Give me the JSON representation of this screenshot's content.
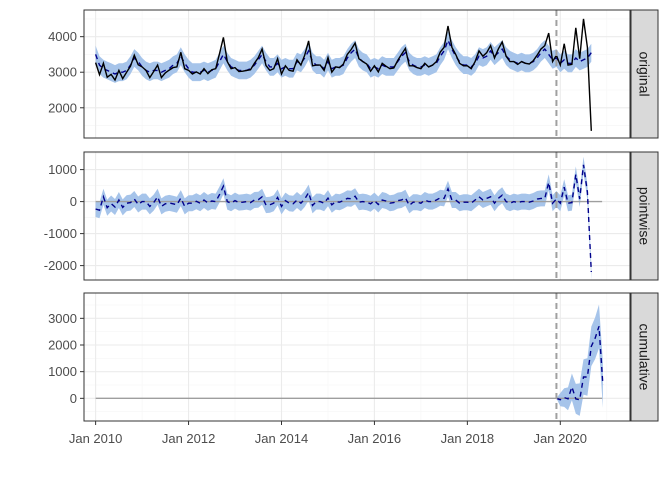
{
  "chart_data": {
    "type": "line",
    "layout": "three stacked facets sharing the x axis, facet strips on the right",
    "colors": {
      "ribbon": "#a6c4ea",
      "observed_line": "#000000",
      "predicted_line": "#00008b",
      "intervention_line": "#a0a0a0",
      "zero_line": "#9e9e9e",
      "strip_fill": "#d9d9d9",
      "panel_border": "#333333",
      "grid_major": "#ebebeb",
      "grid_minor": "#f5f5f5"
    },
    "x_axis": {
      "type": "date",
      "range": [
        "2009-10-01",
        "2021-07-01"
      ],
      "tick_labels": [
        "Jan 2010",
        "Jan 2012",
        "Jan 2014",
        "Jan 2016",
        "Jan 2018",
        "Jan 2020"
      ],
      "tick_dates": [
        "2010-01-01",
        "2012-01-01",
        "2014-01-01",
        "2016-01-01",
        "2018-01-01",
        "2020-01-01"
      ]
    },
    "intervention_date": "2019-12-01",
    "panels": [
      {
        "strip": "original",
        "ylim": [
          1150,
          4750
        ],
        "y_ticks": [
          2000,
          3000,
          4000
        ],
        "y_tick_labels": [
          "2000",
          "3000",
          "4000"
        ],
        "series": [
          {
            "role": "observed",
            "style": "solid",
            "x_start": "2010-01",
            "values": [
              3270,
              2930,
              3250,
              2860,
              2940,
              2780,
              3050,
              2820,
              3000,
              3170,
              3480,
              3210,
              3150,
              3050,
              2850,
              3020,
              3200,
              2850,
              2980,
              3060,
              3130,
              3150,
              3560,
              3100,
              3050,
              2950,
              3010,
              2950,
              3100,
              2960,
              3070,
              3100,
              3520,
              3980,
              3300,
              3100,
              3130,
              3020,
              3030,
              3050,
              3070,
              3250,
              3410,
              3650,
              3190,
              3050,
              3100,
              3380,
              2950,
              3180,
              3050,
              3030,
              3350,
              3200,
              3480,
              3880,
              3180,
              3200,
              3200,
              3050,
              3410,
              3000,
              3150,
              3130,
              3230,
              3500,
              3640,
              3820,
              3380,
              3300,
              3230,
              3030,
              3180,
              3010,
              3250,
              3170,
              3100,
              3120,
              3330,
              3500,
              3670,
              3180,
              3180,
              3130,
              3100,
              3250,
              3150,
              3200,
              3300,
              3570,
              3700,
              4300,
              3700,
              3500,
              3250,
              3180,
              3180,
              3100,
              3300,
              3600,
              3450,
              3550,
              3750,
              3400,
              3650,
              3850,
              3450,
              3300,
              3300,
              3220,
              3300,
              3250,
              3230,
              3320,
              3480,
              3650,
              3750,
              4100,
              3300,
              3480,
              3200,
              3800,
              3200,
              3220,
              4250,
              3380,
              4500,
              3700,
              1350
            ]
          },
          {
            "role": "predicted",
            "style": "dashed",
            "x_start": "2010-01",
            "values": [
              3500,
              3200,
              3100,
              3050,
              3000,
              2950,
              3000,
              3000,
              3050,
              3200,
              3400,
              3300,
              3150,
              3050,
              3000,
              3050,
              3050,
              3000,
              3050,
              3100,
              3200,
              3250,
              3450,
              3250,
              3100,
              3000,
              3000,
              3000,
              3050,
              3000,
              3050,
              3100,
              3300,
              3500,
              3300,
              3150,
              3100,
              3050,
              3050,
              3050,
              3100,
              3200,
              3350,
              3500,
              3300,
              3150,
              3150,
              3250,
              3100,
              3150,
              3100,
              3100,
              3300,
              3250,
              3400,
              3600,
              3300,
              3200,
              3200,
              3100,
              3300,
              3100,
              3150,
              3150,
              3200,
              3400,
              3550,
              3650,
              3400,
              3300,
              3250,
              3100,
              3150,
              3100,
              3200,
              3150,
              3150,
              3150,
              3300,
              3450,
              3550,
              3300,
              3200,
              3150,
              3150,
              3200,
              3150,
              3200,
              3250,
              3450,
              3600,
              3900,
              3650,
              3450,
              3300,
              3200,
              3200,
              3150,
              3250,
              3450,
              3400,
              3450,
              3600,
              3450,
              3550,
              3650,
              3450,
              3350,
              3300,
              3250,
              3300,
              3250,
              3250,
              3300,
              3400,
              3550,
              3650,
              3500,
              3350,
              3400,
              3250,
              3350,
              3250,
              3250,
              3400,
              3300,
              3350,
              3400,
              3550
            ]
          },
          {
            "role": "interval",
            "band": [
              -250,
              250
            ]
          }
        ]
      },
      {
        "strip": "pointwise",
        "ylim": [
          -2450,
          1550
        ],
        "y_ticks": [
          -2000,
          -1000,
          0,
          1000
        ],
        "y_tick_labels": [
          "-2000",
          "-1000",
          "0",
          "1000"
        ],
        "series": [
          {
            "role": "reference",
            "style": "solid",
            "y": 0
          },
          {
            "role": "effect",
            "style": "dashed",
            "x_start": "2010-01",
            "values": [
              -230,
              -270,
              150,
              -190,
              -60,
              -170,
              50,
              -180,
              -50,
              -30,
              80,
              -90,
              0,
              0,
              -150,
              -30,
              150,
              -150,
              -70,
              -40,
              -70,
              -100,
              110,
              -150,
              -50,
              -50,
              10,
              -50,
              50,
              -40,
              20,
              0,
              220,
              480,
              0,
              -50,
              30,
              -30,
              -20,
              0,
              -30,
              50,
              60,
              150,
              -110,
              -100,
              -50,
              130,
              -150,
              30,
              -50,
              -70,
              50,
              -50,
              80,
              280,
              -120,
              0,
              0,
              -50,
              110,
              -100,
              0,
              -20,
              30,
              100,
              90,
              170,
              -20,
              0,
              -20,
              -70,
              30,
              -90,
              50,
              20,
              -50,
              -30,
              30,
              50,
              120,
              -120,
              -20,
              -20,
              -50,
              50,
              0,
              0,
              50,
              120,
              100,
              400,
              50,
              50,
              -50,
              -20,
              -20,
              -50,
              50,
              150,
              50,
              100,
              150,
              -50,
              100,
              200,
              0,
              -50,
              0,
              -30,
              0,
              0,
              -20,
              20,
              80,
              100,
              100,
              600,
              -50,
              80,
              -50,
              450,
              -50,
              -30,
              850,
              80,
              1150,
              300,
              -2200
            ]
          },
          {
            "role": "interval",
            "band": [
              -250,
              250
            ]
          }
        ]
      },
      {
        "strip": "cumulative",
        "ylim": [
          -850,
          3950
        ],
        "y_ticks": [
          0,
          1000,
          2000,
          3000
        ],
        "y_tick_labels": [
          "0",
          "1000",
          "2000",
          "3000"
        ],
        "series": [
          {
            "role": "reference",
            "style": "solid",
            "y": 0
          },
          {
            "role": "cumulative_effect",
            "style": "dashed",
            "x_start": "2019-12",
            "values": [
              0,
              -50,
              30,
              -20,
              430,
              -20,
              -50,
              800,
              800,
              1950,
              2250,
              2700,
              500
            ]
          },
          {
            "role": "interval",
            "band_widths": [
              0,
              250,
              350,
              430,
              500,
              560,
              610,
              660,
              700,
              740,
              780,
              820,
              860
            ]
          }
        ]
      }
    ]
  }
}
